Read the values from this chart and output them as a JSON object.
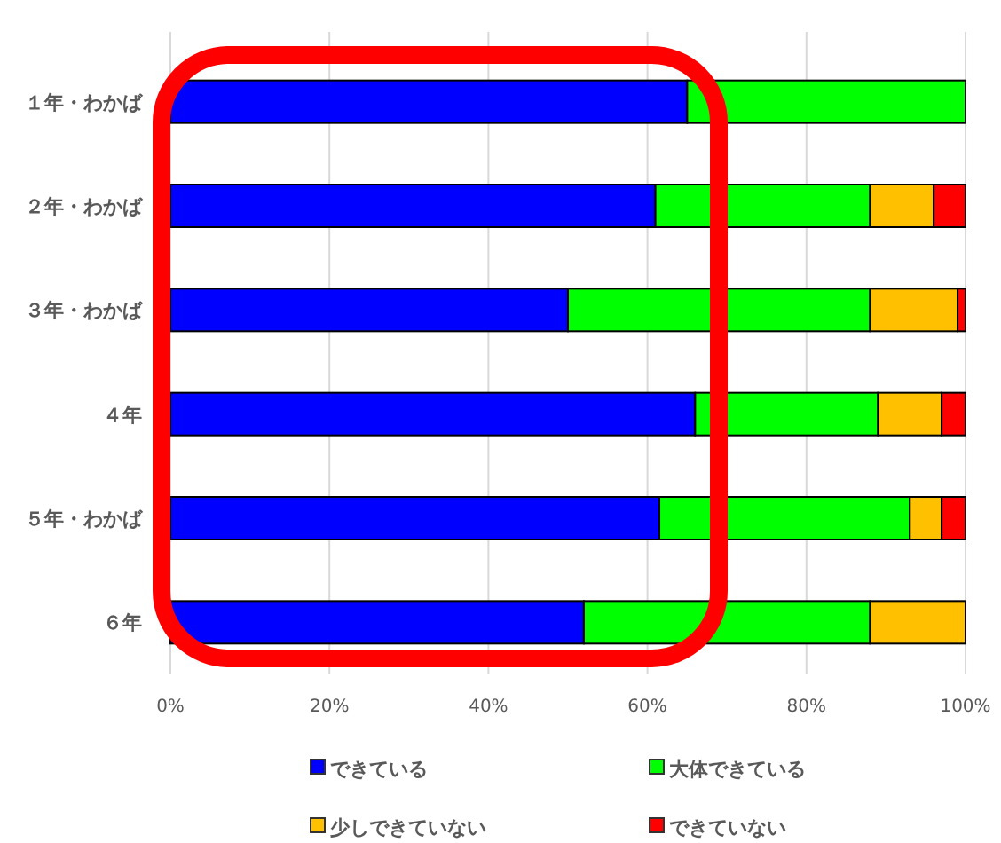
{
  "chart_data": {
    "type": "bar",
    "orientation": "horizontal",
    "stacked": true,
    "categories": [
      "１年・わかば",
      "２年・わかば",
      "３年・わかば",
      "４年",
      "５年・わかば",
      "６年"
    ],
    "series": [
      {
        "name": "できている",
        "color": "#0000ff",
        "values": [
          65,
          61,
          50,
          66,
          61.5,
          52
        ]
      },
      {
        "name": "大体できている",
        "color": "#00ff00",
        "values": [
          35,
          27,
          38,
          23,
          31.5,
          36
        ]
      },
      {
        "name": "少しできていない",
        "color": "#ffc000",
        "values": [
          0,
          8,
          11,
          8,
          4,
          12
        ]
      },
      {
        "name": "できていない",
        "color": "#ff0000",
        "values": [
          0,
          4,
          1,
          3,
          3,
          0
        ]
      }
    ],
    "xlim": [
      0,
      100
    ],
    "xticks": [
      {
        "value": 0,
        "label": "0%"
      },
      {
        "value": 20,
        "label": "20%"
      },
      {
        "value": 40,
        "label": "40%"
      },
      {
        "value": 60,
        "label": "60%"
      },
      {
        "value": 80,
        "label": "80%"
      },
      {
        "value": 100,
        "label": "100%"
      }
    ],
    "grid": "x",
    "legend": "bottom"
  }
}
